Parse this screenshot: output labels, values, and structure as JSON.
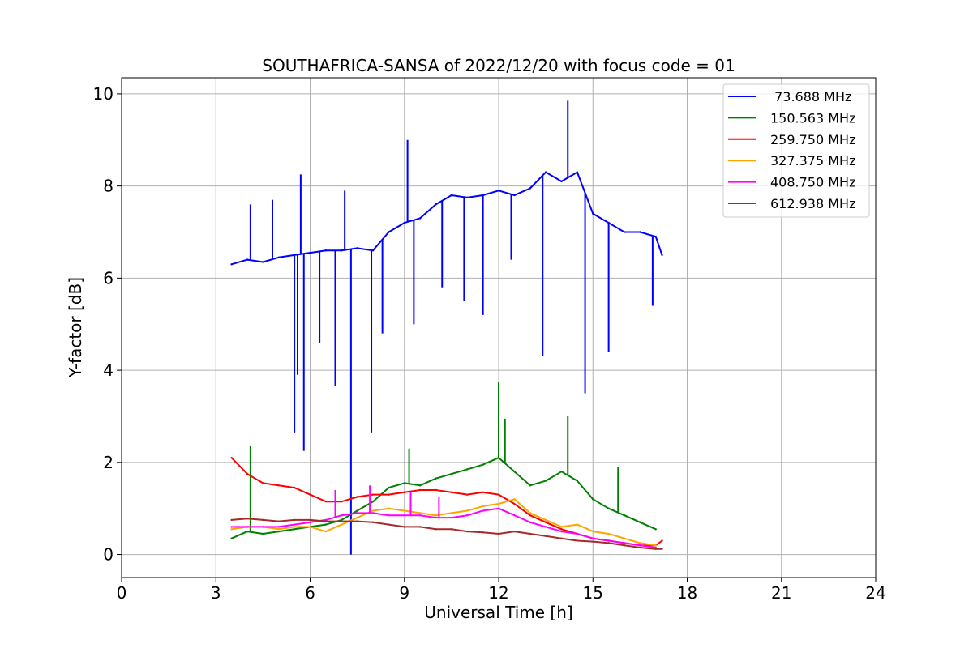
{
  "chart_data": {
    "type": "line",
    "title": "SOUTHAFRICA-SANSA of 2022/12/20 with focus code = 01",
    "xlabel": "Universal Time [h]",
    "ylabel": "Y-factor [dB]",
    "xlim": [
      0,
      24
    ],
    "ylim": [
      -0.5,
      10.35
    ],
    "xticks": [
      0,
      3,
      6,
      9,
      12,
      15,
      18,
      21,
      24
    ],
    "xtick_labels": [
      "0",
      "3",
      "6",
      "9",
      "12",
      "15",
      "18",
      "21",
      "24"
    ],
    "yticks": [
      0,
      2,
      4,
      6,
      8,
      10
    ],
    "ytick_labels": [
      "0",
      "2",
      "4",
      "6",
      "8",
      "10"
    ],
    "grid": true,
    "legend_position": "top-right",
    "series": [
      {
        "name": " 73.688 MHz",
        "color": "#0000ff",
        "x": [
          3.5,
          4.0,
          4.5,
          5.0,
          5.5,
          6.0,
          6.5,
          7.0,
          7.5,
          8.0,
          8.5,
          9.0,
          9.5,
          10.0,
          10.5,
          11.0,
          11.5,
          12.0,
          12.5,
          13.0,
          13.5,
          14.0,
          14.5,
          15.0,
          15.5,
          16.0,
          16.5,
          17.0,
          17.2
        ],
        "values": [
          6.3,
          6.4,
          6.35,
          6.45,
          6.5,
          6.55,
          6.6,
          6.6,
          6.65,
          6.6,
          7.0,
          7.2,
          7.3,
          7.6,
          7.8,
          7.75,
          7.8,
          7.9,
          7.8,
          7.95,
          8.3,
          8.1,
          8.3,
          7.4,
          7.2,
          7.0,
          7.0,
          6.9,
          6.5
        ],
        "spikes": [
          {
            "x": 4.1,
            "y": 7.6
          },
          {
            "x": 4.8,
            "y": 7.7
          },
          {
            "x": 5.5,
            "y": 2.65
          },
          {
            "x": 5.6,
            "y": 3.9
          },
          {
            "x": 5.7,
            "y": 8.25
          },
          {
            "x": 5.8,
            "y": 2.25
          },
          {
            "x": 6.3,
            "y": 4.6
          },
          {
            "x": 6.8,
            "y": 3.65
          },
          {
            "x": 7.1,
            "y": 7.9
          },
          {
            "x": 7.3,
            "y": 0.0
          },
          {
            "x": 7.95,
            "y": 2.65
          },
          {
            "x": 8.3,
            "y": 4.8
          },
          {
            "x": 9.1,
            "y": 9.0
          },
          {
            "x": 9.3,
            "y": 5.0
          },
          {
            "x": 10.2,
            "y": 5.8
          },
          {
            "x": 10.9,
            "y": 5.5
          },
          {
            "x": 11.5,
            "y": 5.2
          },
          {
            "x": 12.4,
            "y": 6.4
          },
          {
            "x": 13.4,
            "y": 4.3
          },
          {
            "x": 14.2,
            "y": 9.85
          },
          {
            "x": 14.75,
            "y": 3.5
          },
          {
            "x": 15.5,
            "y": 4.4
          },
          {
            "x": 16.9,
            "y": 5.4
          }
        ]
      },
      {
        "name": "150.563 MHz",
        "color": "#008000",
        "x": [
          3.5,
          4.0,
          4.5,
          5.0,
          5.5,
          6.0,
          6.5,
          7.0,
          7.5,
          8.0,
          8.5,
          9.0,
          9.5,
          10.0,
          10.5,
          11.0,
          11.5,
          12.0,
          12.5,
          13.0,
          13.5,
          14.0,
          14.5,
          15.0,
          15.5,
          16.0,
          16.5,
          17.0
        ],
        "values": [
          0.35,
          0.5,
          0.45,
          0.5,
          0.55,
          0.6,
          0.65,
          0.75,
          0.95,
          1.15,
          1.45,
          1.55,
          1.5,
          1.65,
          1.75,
          1.85,
          1.95,
          2.1,
          1.8,
          1.5,
          1.6,
          1.8,
          1.6,
          1.2,
          1.0,
          0.85,
          0.7,
          0.55
        ],
        "spikes": [
          {
            "x": 4.1,
            "y": 2.35
          },
          {
            "x": 9.15,
            "y": 2.3
          },
          {
            "x": 12.0,
            "y": 3.75
          },
          {
            "x": 12.2,
            "y": 2.95
          },
          {
            "x": 14.2,
            "y": 3.0
          },
          {
            "x": 15.8,
            "y": 1.9
          }
        ]
      },
      {
        "name": "259.750 MHz",
        "color": "#ff0000",
        "x": [
          3.5,
          4.0,
          4.5,
          5.0,
          5.5,
          6.0,
          6.5,
          7.0,
          7.5,
          8.0,
          8.5,
          9.0,
          9.5,
          10.0,
          10.5,
          11.0,
          11.5,
          12.0,
          12.5,
          13.0,
          13.5,
          14.0,
          14.5,
          15.0,
          15.5,
          16.0,
          16.5,
          17.0,
          17.2
        ],
        "values": [
          2.1,
          1.75,
          1.55,
          1.5,
          1.45,
          1.3,
          1.15,
          1.15,
          1.25,
          1.3,
          1.3,
          1.35,
          1.4,
          1.4,
          1.35,
          1.3,
          1.35,
          1.3,
          1.1,
          0.85,
          0.7,
          0.55,
          0.45,
          0.35,
          0.3,
          0.25,
          0.2,
          0.2,
          0.3
        ],
        "spikes": []
      },
      {
        "name": "327.375 MHz",
        "color": "#ffa500",
        "x": [
          3.5,
          4.0,
          4.5,
          5.0,
          5.5,
          6.0,
          6.5,
          7.0,
          7.5,
          8.0,
          8.5,
          9.0,
          9.5,
          10.0,
          10.5,
          11.0,
          11.5,
          12.0,
          12.5,
          13.0,
          13.5,
          14.0,
          14.5,
          15.0,
          15.5,
          16.0,
          16.5,
          17.0
        ],
        "values": [
          0.55,
          0.6,
          0.6,
          0.55,
          0.6,
          0.6,
          0.5,
          0.65,
          0.8,
          0.95,
          1.0,
          0.95,
          0.9,
          0.85,
          0.9,
          0.95,
          1.05,
          1.1,
          1.2,
          0.9,
          0.75,
          0.6,
          0.65,
          0.5,
          0.45,
          0.35,
          0.25,
          0.2
        ],
        "spikes": []
      },
      {
        "name": "408.750 MHz",
        "color": "#ff00ff",
        "x": [
          3.5,
          4.0,
          4.5,
          5.0,
          5.5,
          6.0,
          6.5,
          7.0,
          7.5,
          8.0,
          8.5,
          9.0,
          9.5,
          10.0,
          10.5,
          11.0,
          11.5,
          12.0,
          12.5,
          13.0,
          13.5,
          14.0,
          14.5,
          15.0,
          15.5,
          16.0,
          16.5,
          17.0
        ],
        "values": [
          0.6,
          0.6,
          0.6,
          0.6,
          0.65,
          0.7,
          0.75,
          0.85,
          0.9,
          0.9,
          0.85,
          0.85,
          0.85,
          0.8,
          0.8,
          0.85,
          0.95,
          1.0,
          0.85,
          0.7,
          0.6,
          0.5,
          0.45,
          0.35,
          0.3,
          0.25,
          0.2,
          0.15
        ],
        "spikes": [
          {
            "x": 6.8,
            "y": 1.4
          },
          {
            "x": 7.9,
            "y": 1.5
          },
          {
            "x": 9.2,
            "y": 1.35
          },
          {
            "x": 10.1,
            "y": 1.25
          }
        ]
      },
      {
        "name": "612.938 MHz",
        "color": "#a52a2a",
        "x": [
          3.5,
          4.0,
          4.5,
          5.0,
          5.5,
          6.0,
          6.5,
          7.0,
          7.5,
          8.0,
          8.5,
          9.0,
          9.5,
          10.0,
          10.5,
          11.0,
          11.5,
          12.0,
          12.5,
          13.0,
          13.5,
          14.0,
          14.5,
          15.0,
          15.5,
          16.0,
          16.5,
          17.0,
          17.2
        ],
        "values": [
          0.75,
          0.78,
          0.75,
          0.72,
          0.75,
          0.75,
          0.72,
          0.72,
          0.72,
          0.7,
          0.65,
          0.6,
          0.6,
          0.55,
          0.55,
          0.5,
          0.48,
          0.45,
          0.5,
          0.45,
          0.4,
          0.35,
          0.3,
          0.28,
          0.25,
          0.2,
          0.15,
          0.12,
          0.12
        ],
        "spikes": []
      }
    ]
  }
}
